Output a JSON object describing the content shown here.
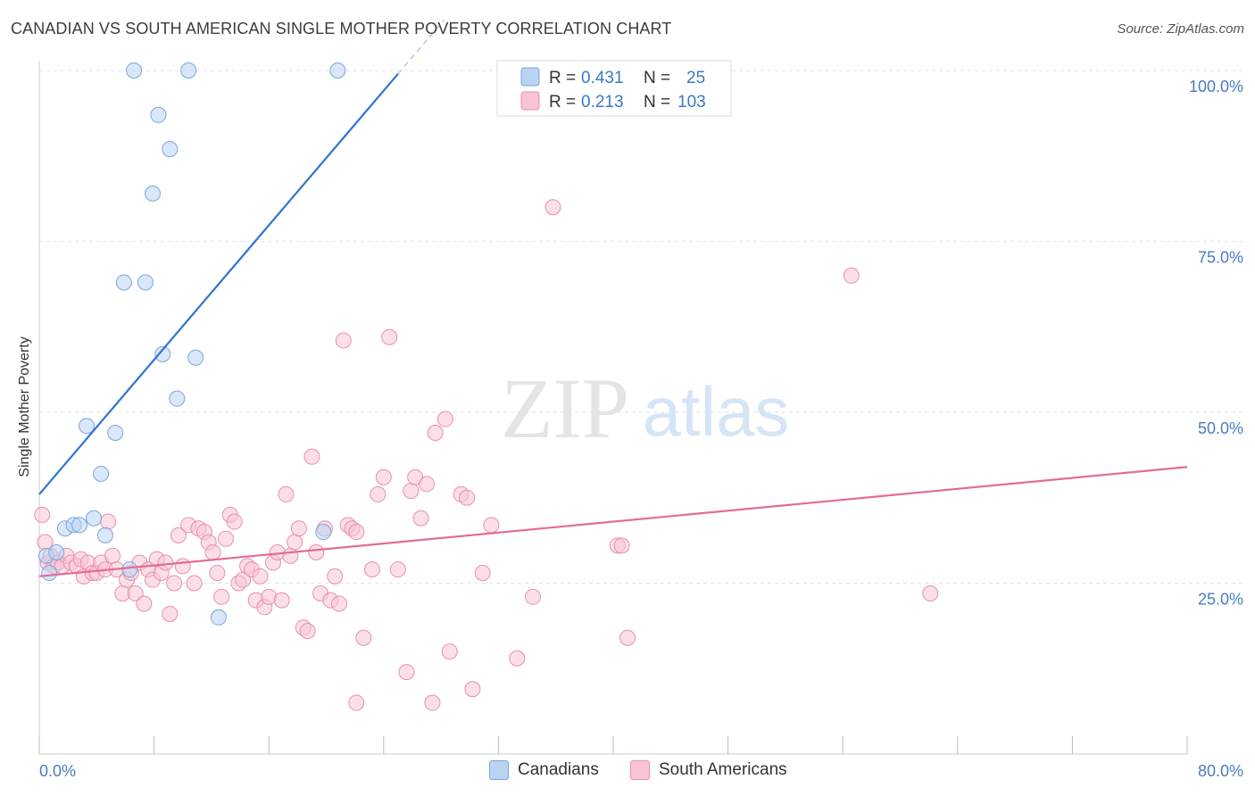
{
  "title": "CANADIAN VS SOUTH AMERICAN SINGLE MOTHER POVERTY CORRELATION CHART",
  "source": "Source: ZipAtlas.com",
  "watermark": {
    "zip": "ZIP",
    "atlas": "atlas"
  },
  "colors": {
    "canadians_fill": "#b9d3f3",
    "canadians_stroke": "#7aa6dc",
    "canadians_line": "#2f74d0",
    "south_fill": "#f8c4d4",
    "south_stroke": "#eb8eab",
    "south_line": "#e36b96",
    "grid": "#e2e2e2",
    "axis_text": "#4a7cc4"
  },
  "legend_top": {
    "rows": [
      {
        "r_label": "R =",
        "r_value": "0.431",
        "n_label": "N =",
        "n_value": "25"
      },
      {
        "r_label": "R =",
        "r_value": "0.213",
        "n_label": "N =",
        "n_value": "103"
      }
    ]
  },
  "legend_bottom": {
    "canadians": "Canadians",
    "south_americans": "South Americans"
  },
  "chart_data": {
    "type": "scatter",
    "title": "CANADIAN VS SOUTH AMERICAN SINGLE MOTHER POVERTY CORRELATION CHART",
    "xlabel": "",
    "ylabel": "Single Mother Poverty",
    "xlim": [
      0,
      80
    ],
    "ylim": [
      0,
      100
    ],
    "x_tick_labels": [
      "0.0%",
      "80.0%"
    ],
    "y_ticks": [
      25,
      50,
      75,
      100
    ],
    "y_tick_labels": [
      "25.0%",
      "50.0%",
      "75.0%",
      "100.0%"
    ],
    "grid": true,
    "legend": "top-center",
    "series": [
      {
        "name": "Canadians",
        "R": 0.431,
        "N": 25,
        "trend": {
          "x0": 0,
          "y0": 38,
          "x1": 25,
          "y1": 99.5,
          "solid_to_x": 25,
          "dashed_from_x": 25
        },
        "points": [
          [
            0.5,
            29
          ],
          [
            0.7,
            26.5
          ],
          [
            1.2,
            29.5
          ],
          [
            1.8,
            33
          ],
          [
            2.4,
            33.5
          ],
          [
            2.8,
            33.5
          ],
          [
            3.3,
            48
          ],
          [
            3.8,
            34.5
          ],
          [
            4.3,
            41
          ],
          [
            4.6,
            32
          ],
          [
            5.3,
            47
          ],
          [
            5.9,
            69
          ],
          [
            6.3,
            27
          ],
          [
            6.6,
            100
          ],
          [
            7.4,
            69
          ],
          [
            7.9,
            82
          ],
          [
            8.3,
            93.5
          ],
          [
            8.6,
            58.5
          ],
          [
            9.1,
            88.5
          ],
          [
            9.6,
            52
          ],
          [
            10.4,
            100
          ],
          [
            10.9,
            58
          ],
          [
            12.5,
            20
          ],
          [
            19.8,
            32.5
          ],
          [
            20.8,
            100
          ]
        ]
      },
      {
        "name": "South Americans",
        "R": 0.213,
        "N": 103,
        "trend": {
          "x0": 0,
          "y0": 26,
          "x1": 80,
          "y1": 42
        },
        "points": [
          [
            0.2,
            35
          ],
          [
            0.4,
            31
          ],
          [
            0.6,
            28
          ],
          [
            0.8,
            29
          ],
          [
            1.0,
            27.5
          ],
          [
            1.3,
            28
          ],
          [
            1.6,
            27.5
          ],
          [
            1.9,
            29
          ],
          [
            2.2,
            28
          ],
          [
            2.6,
            27.5
          ],
          [
            2.9,
            28.5
          ],
          [
            3.1,
            26
          ],
          [
            3.4,
            28
          ],
          [
            3.7,
            26.5
          ],
          [
            4.0,
            26.5
          ],
          [
            4.3,
            28
          ],
          [
            4.6,
            27
          ],
          [
            4.8,
            34
          ],
          [
            5.1,
            29
          ],
          [
            5.4,
            27
          ],
          [
            5.8,
            23.5
          ],
          [
            6.1,
            25.5
          ],
          [
            6.4,
            26.5
          ],
          [
            6.7,
            23.5
          ],
          [
            7.0,
            28
          ],
          [
            7.3,
            22
          ],
          [
            7.6,
            27
          ],
          [
            7.9,
            25.5
          ],
          [
            8.2,
            28.5
          ],
          [
            8.5,
            26.5
          ],
          [
            8.8,
            28
          ],
          [
            9.1,
            20.5
          ],
          [
            9.4,
            25
          ],
          [
            9.7,
            32
          ],
          [
            10.0,
            27.5
          ],
          [
            10.4,
            33.5
          ],
          [
            10.8,
            25
          ],
          [
            11.1,
            33
          ],
          [
            11.5,
            32.5
          ],
          [
            11.8,
            31
          ],
          [
            12.1,
            29.5
          ],
          [
            12.4,
            26.5
          ],
          [
            12.7,
            23
          ],
          [
            13.0,
            31.5
          ],
          [
            13.3,
            35
          ],
          [
            13.6,
            34
          ],
          [
            13.9,
            25
          ],
          [
            14.2,
            25.5
          ],
          [
            14.5,
            27.5
          ],
          [
            14.8,
            27
          ],
          [
            15.1,
            22.5
          ],
          [
            15.4,
            26
          ],
          [
            15.7,
            21.5
          ],
          [
            16.0,
            23
          ],
          [
            16.3,
            28
          ],
          [
            16.6,
            29.5
          ],
          [
            16.9,
            22.5
          ],
          [
            17.2,
            38
          ],
          [
            17.5,
            29
          ],
          [
            17.8,
            31
          ],
          [
            18.1,
            33
          ],
          [
            18.4,
            18.5
          ],
          [
            18.7,
            18
          ],
          [
            19.0,
            43.5
          ],
          [
            19.3,
            29.5
          ],
          [
            19.6,
            23.5
          ],
          [
            19.9,
            33
          ],
          [
            20.3,
            22.5
          ],
          [
            20.6,
            26
          ],
          [
            20.9,
            22
          ],
          [
            21.2,
            60.5
          ],
          [
            21.5,
            33.5
          ],
          [
            21.8,
            33
          ],
          [
            22.1,
            32.5
          ],
          [
            22.6,
            17
          ],
          [
            23.2,
            27
          ],
          [
            23.6,
            38
          ],
          [
            24.0,
            40.5
          ],
          [
            24.4,
            61
          ],
          [
            25.0,
            27
          ],
          [
            25.6,
            12
          ],
          [
            25.9,
            38.5
          ],
          [
            26.2,
            40.5
          ],
          [
            26.6,
            34.5
          ],
          [
            27.0,
            39.5
          ],
          [
            27.6,
            47
          ],
          [
            28.3,
            49
          ],
          [
            28.6,
            15
          ],
          [
            29.4,
            38
          ],
          [
            29.8,
            37.5
          ],
          [
            30.2,
            9.5
          ],
          [
            30.9,
            26.5
          ],
          [
            31.5,
            33.5
          ],
          [
            33.3,
            14
          ],
          [
            34.4,
            23
          ],
          [
            35.8,
            80
          ],
          [
            40.3,
            30.5
          ],
          [
            40.6,
            30.5
          ],
          [
            41.0,
            17
          ],
          [
            56.6,
            70
          ],
          [
            62.1,
            23.5
          ],
          [
            27.4,
            7.5
          ],
          [
            22.1,
            7.5
          ]
        ]
      }
    ]
  }
}
